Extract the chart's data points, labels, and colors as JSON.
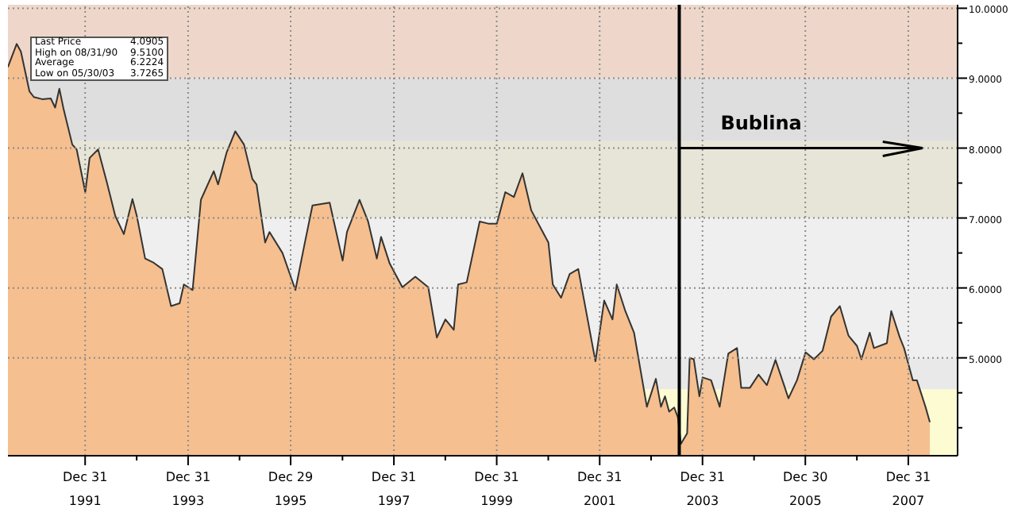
{
  "chart_data": {
    "type": "area",
    "series": [
      {
        "color": "#f5bf8f",
        "x": [
          "1990-07",
          "1990-09",
          "1990-10",
          "1990-12",
          "1991-01",
          "1991-03",
          "1991-05",
          "1991-06",
          "1991-07",
          "1991-08",
          "1991-10",
          "1991-11",
          "1992-01",
          "1992-02",
          "1992-04",
          "1992-06",
          "1992-08",
          "1992-10",
          "1992-12",
          "1993-01",
          "1993-03",
          "1993-05",
          "1993-07",
          "1993-09",
          "1993-11",
          "1993-12",
          "1994-02",
          "1994-04",
          "1994-07",
          "1994-08",
          "1994-10",
          "1994-12",
          "1995-02",
          "1995-04",
          "1995-05",
          "1995-07",
          "1995-08",
          "1995-11",
          "1996-02",
          "1996-04",
          "1996-06",
          "1996-10",
          "1997-01",
          "1997-02",
          "1997-05",
          "1997-07",
          "1997-09",
          "1997-10",
          "1997-12",
          "1998-03",
          "1998-06",
          "1998-09",
          "1998-11",
          "1999-01",
          "1999-03",
          "1999-04",
          "1999-06",
          "1999-09",
          "1999-11",
          "2000-01",
          "2000-03",
          "2000-05",
          "2000-07",
          "2000-09",
          "2000-11",
          "2001-01",
          "2001-02",
          "2001-04",
          "2001-06",
          "2001-08",
          "2001-12",
          "2002-02",
          "2002-04",
          "2002-05",
          "2002-07",
          "2002-09",
          "2002-12",
          "2003-02-03",
          "2003-03-11",
          "2003-04-09",
          "2003-05-08",
          "2003-06-13",
          "2003-07-09",
          "2003-07-31",
          "2003-09-13",
          "2003-10-01",
          "2003-10-30",
          "2003-12-09",
          "2004-01",
          "2004-03",
          "2004-05",
          "2004-07",
          "2004-09",
          "2004-10",
          "2004-12",
          "2005-02",
          "2005-04",
          "2005-06",
          "2005-08",
          "2005-09",
          "2005-11",
          "2006-01",
          "2006-03",
          "2006-05",
          "2006-07",
          "2006-09",
          "2006-11",
          "2007-01",
          "2007-02",
          "2007-04",
          "2007-05",
          "2007-08",
          "2007-09",
          "2007-11",
          "2007-12",
          "2008-02",
          "2008-03",
          "2008-05",
          "2008-06"
        ],
        "values": [
          9.16,
          9.49,
          9.38,
          8.81,
          8.73,
          8.7,
          8.71,
          8.58,
          8.85,
          8.55,
          8.05,
          7.98,
          7.37,
          7.86,
          7.98,
          7.52,
          7.03,
          6.77,
          7.27,
          7.03,
          6.42,
          6.36,
          6.27,
          5.74,
          5.78,
          6.05,
          5.97,
          7.26,
          7.67,
          7.48,
          7.94,
          8.24,
          8.05,
          7.56,
          7.48,
          6.65,
          6.8,
          6.5,
          5.97,
          6.58,
          7.18,
          7.22,
          6.39,
          6.8,
          7.26,
          6.95,
          6.42,
          6.73,
          6.35,
          6.01,
          6.16,
          6.01,
          5.29,
          5.55,
          5.4,
          6.05,
          6.08,
          6.95,
          6.92,
          6.92,
          7.37,
          7.3,
          7.64,
          7.11,
          6.88,
          6.65,
          6.05,
          5.86,
          6.2,
          6.27,
          4.95,
          5.82,
          5.55,
          6.05,
          5.67,
          5.36,
          4.3,
          4.7,
          4.3,
          4.45,
          4.23,
          4.29,
          4.15,
          3.77,
          3.92,
          5.0,
          4.98,
          4.45,
          4.72,
          4.68,
          4.3,
          5.06,
          5.14,
          4.57,
          4.57,
          4.76,
          4.61,
          4.97,
          4.61,
          4.42,
          4.68,
          5.08,
          4.98,
          5.1,
          5.59,
          5.74,
          5.32,
          5.17,
          4.98,
          5.36,
          5.14,
          5.21,
          5.67,
          5.29,
          5.14,
          4.68,
          4.68,
          4.3,
          4.08
        ]
      }
    ],
    "xlim": [
      "1990-07-01",
      "2008-12-15"
    ],
    "xticks": [
      {
        "value": "1991-12-31",
        "label": "Dec 31\n1991"
      },
      {
        "value": "1992-12-31",
        "label": null
      },
      {
        "value": "1993-12-31",
        "label": "Dec 31\n1993"
      },
      {
        "value": "1994-12-31",
        "label": null
      },
      {
        "value": "1995-12-29",
        "label": "Dec 29\n1995"
      },
      {
        "value": "1996-12-31",
        "label": null
      },
      {
        "value": "1997-12-31",
        "label": "Dec 31\n1997"
      },
      {
        "value": "1998-12-31",
        "label": null
      },
      {
        "value": "1999-12-31",
        "label": "Dec 31\n1999"
      },
      {
        "value": "2000-12-31",
        "label": null
      },
      {
        "value": "2001-12-31",
        "label": "Dec 31\n2001"
      },
      {
        "value": "2002-12-31",
        "label": null
      },
      {
        "value": "2003-12-31",
        "label": "Dec 31\n2003"
      },
      {
        "value": "2004-12-31",
        "label": null
      },
      {
        "value": "2005-12-30",
        "label": "Dec 30\n2005"
      },
      {
        "value": "2006-12-31",
        "label": null
      },
      {
        "value": "2007-12-31",
        "label": "Dec 31\n2007"
      }
    ],
    "ylim": [
      3.6,
      10.05
    ],
    "yticks": [
      {
        "value": 4,
        "label": null
      },
      {
        "value": 4.5,
        "label": null
      },
      {
        "value": 5,
        "label": "5.0000"
      },
      {
        "value": 5.5,
        "label": null
      },
      {
        "value": 6,
        "label": "6.0000"
      },
      {
        "value": 6.5,
        "label": null
      },
      {
        "value": 7,
        "label": "7.0000"
      },
      {
        "value": 7.5,
        "label": null
      },
      {
        "value": 8,
        "label": "8.0000"
      },
      {
        "value": 8.5,
        "label": null
      },
      {
        "value": 9,
        "label": "9.0000"
      },
      {
        "value": 9.5,
        "label": null
      },
      {
        "value": 10,
        "label": "10.0000"
      }
    ],
    "grid": true,
    "bands": [
      {
        "axis": "y",
        "from": 3.6,
        "to": 4.55,
        "color": "#fdfbd2"
      },
      {
        "axis": "y",
        "from": 4.55,
        "to": 5.0,
        "color": "#e9e9e9"
      },
      {
        "axis": "y",
        "from": 5.0,
        "to": 7.0,
        "color": "#efefef"
      },
      {
        "axis": "y",
        "from": 7.0,
        "to": 8.1,
        "color": "#e7e5d7"
      },
      {
        "axis": "y",
        "from": 8.1,
        "to": 9.0,
        "color": "#dedede"
      },
      {
        "axis": "y",
        "from": 9.0,
        "to": 10.05,
        "color": "#eed7ca"
      }
    ],
    "ref_lines": [
      {
        "axis": "x",
        "value": "2003-07-19",
        "color": "#000000"
      }
    ],
    "annotations": [
      {
        "text": "Bublina",
        "x": "2003-07-19",
        "y": 8
      },
      "Last Price",
      "4.0905",
      "High on 08/31/90",
      "9.5100",
      "Average",
      "6.2224",
      "Low on 05/30/03",
      "3.7265"
    ]
  }
}
